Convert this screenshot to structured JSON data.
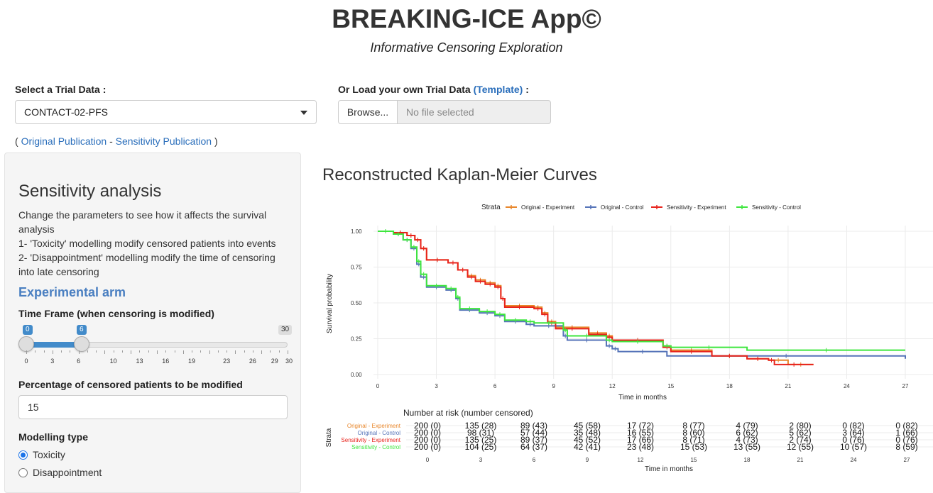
{
  "header": {
    "title": "BREAKING-ICE App©",
    "subtitle": "Informative Censoring Exploration"
  },
  "trial_select": {
    "label": "Select a Trial Data :",
    "value": "CONTACT-02-PFS"
  },
  "upload": {
    "label_prefix": "Or Load your own Trial Data",
    "template_link": "(Template)",
    "label_suffix": ":",
    "browse_label": "Browse...",
    "file_placeholder": "No file selected"
  },
  "publications": {
    "open": "(",
    "original": "Original Publication",
    "sep": "-",
    "sensitivity": "Sensitivity Publication",
    "close": ")"
  },
  "sidebar": {
    "title": "Sensitivity analysis",
    "description": [
      "Change the parameters to see how it affects the survival analysis",
      "1- 'Toxicity' modelling modify censored patients into events",
      "2- 'Disappointment' modelling modify the time of censoring into late censoring"
    ],
    "arm_title": "Experimental arm",
    "time_frame": {
      "label": "Time Frame (when censoring is modified)",
      "min": 0,
      "max": 30,
      "low": 0,
      "high": 6,
      "min_label": "0",
      "high_label": "6",
      "max_label": "30",
      "tick_labels": [
        "0",
        "3",
        "6",
        "10",
        "13",
        "16",
        "19",
        "23",
        "26",
        "29",
        "30"
      ]
    },
    "percentage": {
      "label": "Percentage of censored patients to be modified",
      "value": "15"
    },
    "modelling": {
      "label": "Modelling type",
      "options": [
        "Toxicity",
        "Disappointment"
      ],
      "selected": "Toxicity"
    }
  },
  "km_panel": {
    "title": "Reconstructed Kaplan-Meier Curves"
  },
  "colors": {
    "orange": "#e8862a",
    "blue": "#5573b8",
    "red": "#e8231c",
    "green": "#3ee63e",
    "link": "#2a6ebb"
  },
  "chart_data": {
    "type": "line",
    "legend_title": "Strata",
    "legend_position": "top",
    "xlabel": "Time in months",
    "ylabel": "Survival probability",
    "xlim": [
      0,
      27
    ],
    "ylim": [
      0,
      1
    ],
    "x_ticks": [
      "0",
      "3",
      "6",
      "9",
      "12",
      "15",
      "18",
      "21",
      "24",
      "27"
    ],
    "y_ticks": [
      "0.00",
      "0.25",
      "0.50",
      "0.75",
      "1.00"
    ],
    "series": [
      {
        "name": "Original - Experiment",
        "color": "#e8862a",
        "points": [
          [
            0,
            1.0
          ],
          [
            0.8,
            0.99
          ],
          [
            1.5,
            0.97
          ],
          [
            1.9,
            0.94
          ],
          [
            2.2,
            0.88
          ],
          [
            2.5,
            0.8
          ],
          [
            3.6,
            0.78
          ],
          [
            4.1,
            0.73
          ],
          [
            4.6,
            0.69
          ],
          [
            5,
            0.66
          ],
          [
            5.5,
            0.64
          ],
          [
            6,
            0.62
          ],
          [
            6.3,
            0.53
          ],
          [
            6.5,
            0.48
          ],
          [
            8,
            0.47
          ],
          [
            8.4,
            0.43
          ],
          [
            8.7,
            0.37
          ],
          [
            9.1,
            0.33
          ],
          [
            10.8,
            0.29
          ],
          [
            11.7,
            0.27
          ],
          [
            12,
            0.24
          ],
          [
            14.6,
            0.2
          ],
          [
            15,
            0.17
          ],
          [
            17.1,
            0.13
          ],
          [
            18.9,
            0.11
          ],
          [
            20,
            0.1
          ],
          [
            21,
            0.07
          ],
          [
            22.3,
            0.07
          ]
        ]
      },
      {
        "name": "Original - Control",
        "color": "#5573b8",
        "points": [
          [
            0,
            1.0
          ],
          [
            0.8,
            0.98
          ],
          [
            1.3,
            0.94
          ],
          [
            1.7,
            0.88
          ],
          [
            2,
            0.77
          ],
          [
            2.2,
            0.68
          ],
          [
            2.5,
            0.61
          ],
          [
            3.5,
            0.59
          ],
          [
            4,
            0.53
          ],
          [
            4.2,
            0.45
          ],
          [
            5.2,
            0.43
          ],
          [
            6,
            0.41
          ],
          [
            6.5,
            0.37
          ],
          [
            7.6,
            0.35
          ],
          [
            8,
            0.34
          ],
          [
            9.5,
            0.27
          ],
          [
            9.7,
            0.24
          ],
          [
            11.7,
            0.2
          ],
          [
            12,
            0.18
          ],
          [
            12.3,
            0.16
          ],
          [
            14.8,
            0.13
          ],
          [
            27,
            0.11
          ]
        ]
      },
      {
        "name": "Sensitivity - Experiment",
        "color": "#e8231c",
        "points": [
          [
            0,
            1.0
          ],
          [
            0.8,
            0.99
          ],
          [
            1.5,
            0.97
          ],
          [
            1.9,
            0.94
          ],
          [
            2.2,
            0.88
          ],
          [
            2.5,
            0.8
          ],
          [
            3.6,
            0.78
          ],
          [
            4.1,
            0.73
          ],
          [
            4.6,
            0.68
          ],
          [
            5,
            0.65
          ],
          [
            5.5,
            0.63
          ],
          [
            6,
            0.61
          ],
          [
            6.3,
            0.53
          ],
          [
            6.5,
            0.47
          ],
          [
            8,
            0.46
          ],
          [
            8.4,
            0.42
          ],
          [
            8.7,
            0.36
          ],
          [
            9.1,
            0.32
          ],
          [
            10.8,
            0.28
          ],
          [
            11.7,
            0.26
          ],
          [
            12,
            0.24
          ],
          [
            14.6,
            0.19
          ],
          [
            15,
            0.16
          ],
          [
            17.1,
            0.13
          ],
          [
            18.9,
            0.11
          ],
          [
            20,
            0.1
          ],
          [
            20.3,
            0.07
          ],
          [
            22.3,
            0.07
          ]
        ]
      },
      {
        "name": "Sensitivity - Control",
        "color": "#3ee63e",
        "points": [
          [
            0,
            1.0
          ],
          [
            0.8,
            0.98
          ],
          [
            1.3,
            0.94
          ],
          [
            1.7,
            0.89
          ],
          [
            2,
            0.79
          ],
          [
            2.2,
            0.7
          ],
          [
            2.5,
            0.62
          ],
          [
            3.5,
            0.6
          ],
          [
            4,
            0.54
          ],
          [
            4.2,
            0.46
          ],
          [
            5.2,
            0.44
          ],
          [
            6,
            0.42
          ],
          [
            6.5,
            0.38
          ],
          [
            7.6,
            0.37
          ],
          [
            8,
            0.36
          ],
          [
            9.5,
            0.31
          ],
          [
            9.7,
            0.27
          ],
          [
            11.7,
            0.24
          ],
          [
            12,
            0.23
          ],
          [
            14.6,
            0.2
          ],
          [
            15,
            0.19
          ],
          [
            18.9,
            0.17
          ],
          [
            27,
            0.17
          ]
        ]
      }
    ],
    "risk_table": {
      "title": "Number at risk (number censored)",
      "y_label": "Strata",
      "x_label": "Time in months",
      "times": [
        "0",
        "3",
        "6",
        "9",
        "12",
        "15",
        "18",
        "21",
        "24",
        "27"
      ],
      "rows": [
        {
          "name": "Original - Experiment",
          "color": "#e8862a",
          "values": [
            "200 (0)",
            "135 (28)",
            "89 (43)",
            "45 (58)",
            "17 (72)",
            "8 (77)",
            "4 (79)",
            "2 (80)",
            "0 (82)",
            "0 (82)"
          ]
        },
        {
          "name": "Original - Control",
          "color": "#5573b8",
          "values": [
            "200 (0)",
            "98 (31)",
            "57 (44)",
            "35 (48)",
            "16 (55)",
            "8 (60)",
            "6 (62)",
            "5 (62)",
            "3 (64)",
            "1 (66)"
          ]
        },
        {
          "name": "Sensitivity - Experiment",
          "color": "#e8231c",
          "values": [
            "200 (0)",
            "135 (25)",
            "89 (37)",
            "45 (52)",
            "17 (66)",
            "8 (71)",
            "4 (73)",
            "2 (74)",
            "0 (76)",
            "0 (76)"
          ]
        },
        {
          "name": "Sensitivity - Control",
          "color": "#3ee63e",
          "values": [
            "200 (0)",
            "104 (25)",
            "64 (37)",
            "42 (41)",
            "23 (48)",
            "15 (53)",
            "13 (55)",
            "12 (55)",
            "10 (57)",
            "8 (59)"
          ]
        }
      ]
    }
  }
}
